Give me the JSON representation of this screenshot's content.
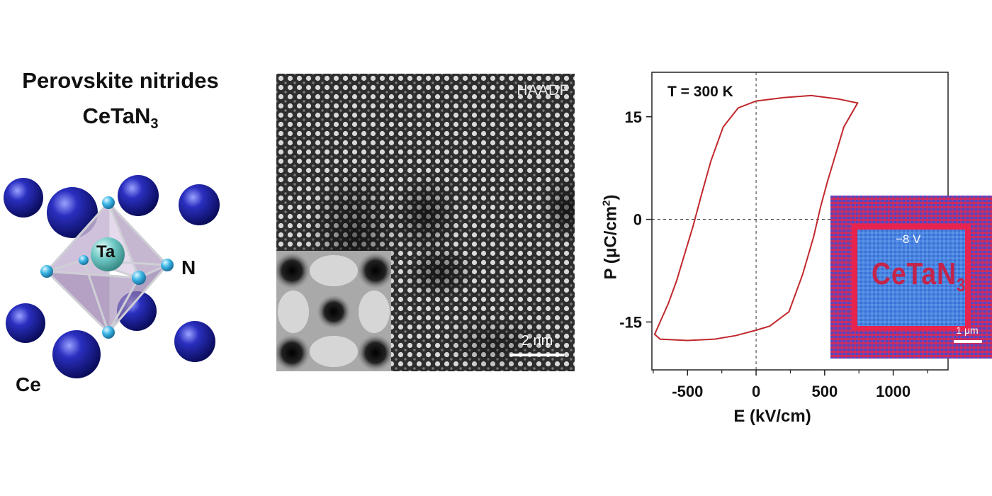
{
  "structure": {
    "title_line1": "Perovskite nitrides",
    "title_line2_base": "CeTaN",
    "title_line2_sub": "3",
    "labels": {
      "center": "Ta",
      "anion": "N",
      "corner": "Ce"
    }
  },
  "haadf": {
    "label": "HAADF",
    "scale_bar": "2 nm"
  },
  "chart_data": {
    "type": "line",
    "annotation": "T = 300 K",
    "xlabel": "E (kV/cm)",
    "ylabel": "P (μC/cm²)",
    "xlim": [
      -760,
      1400
    ],
    "ylim": [
      -22,
      21.5
    ],
    "x_ticks": [
      -500,
      0,
      500,
      1000
    ],
    "y_ticks": [
      -15,
      0,
      15
    ],
    "grid": false,
    "reference_lines": {
      "x": 0,
      "y": 0,
      "style": "dashed"
    },
    "series": [
      {
        "color": "#c0282d",
        "points": [
          [
            740,
            17
          ],
          [
            600,
            17.6
          ],
          [
            400,
            18.1
          ],
          [
            200,
            17.8
          ],
          [
            0,
            17.3
          ],
          [
            -130,
            16.3
          ],
          [
            -240,
            13.5
          ],
          [
            -330,
            8.5
          ],
          [
            -400,
            3.5
          ],
          [
            -460,
            -1
          ],
          [
            -520,
            -5
          ],
          [
            -580,
            -9
          ],
          [
            -640,
            -12.3
          ],
          [
            -700,
            -15
          ],
          [
            -740,
            -16.8
          ],
          [
            -700,
            -17.5
          ],
          [
            -500,
            -17.7
          ],
          [
            -300,
            -17.5
          ],
          [
            -150,
            -17
          ],
          [
            0,
            -16.2
          ],
          [
            100,
            -15.6
          ],
          [
            240,
            -13.5
          ],
          [
            340,
            -8
          ],
          [
            420,
            -2.5
          ],
          [
            470,
            1.8
          ],
          [
            520,
            5.5
          ],
          [
            580,
            9.5
          ],
          [
            640,
            13.5
          ],
          [
            740,
            17
          ]
        ]
      }
    ]
  },
  "pfm": {
    "voltage": "−8 V",
    "name_base": "CeTaN",
    "name_sub": "3",
    "scale_bar": "1 μm"
  }
}
